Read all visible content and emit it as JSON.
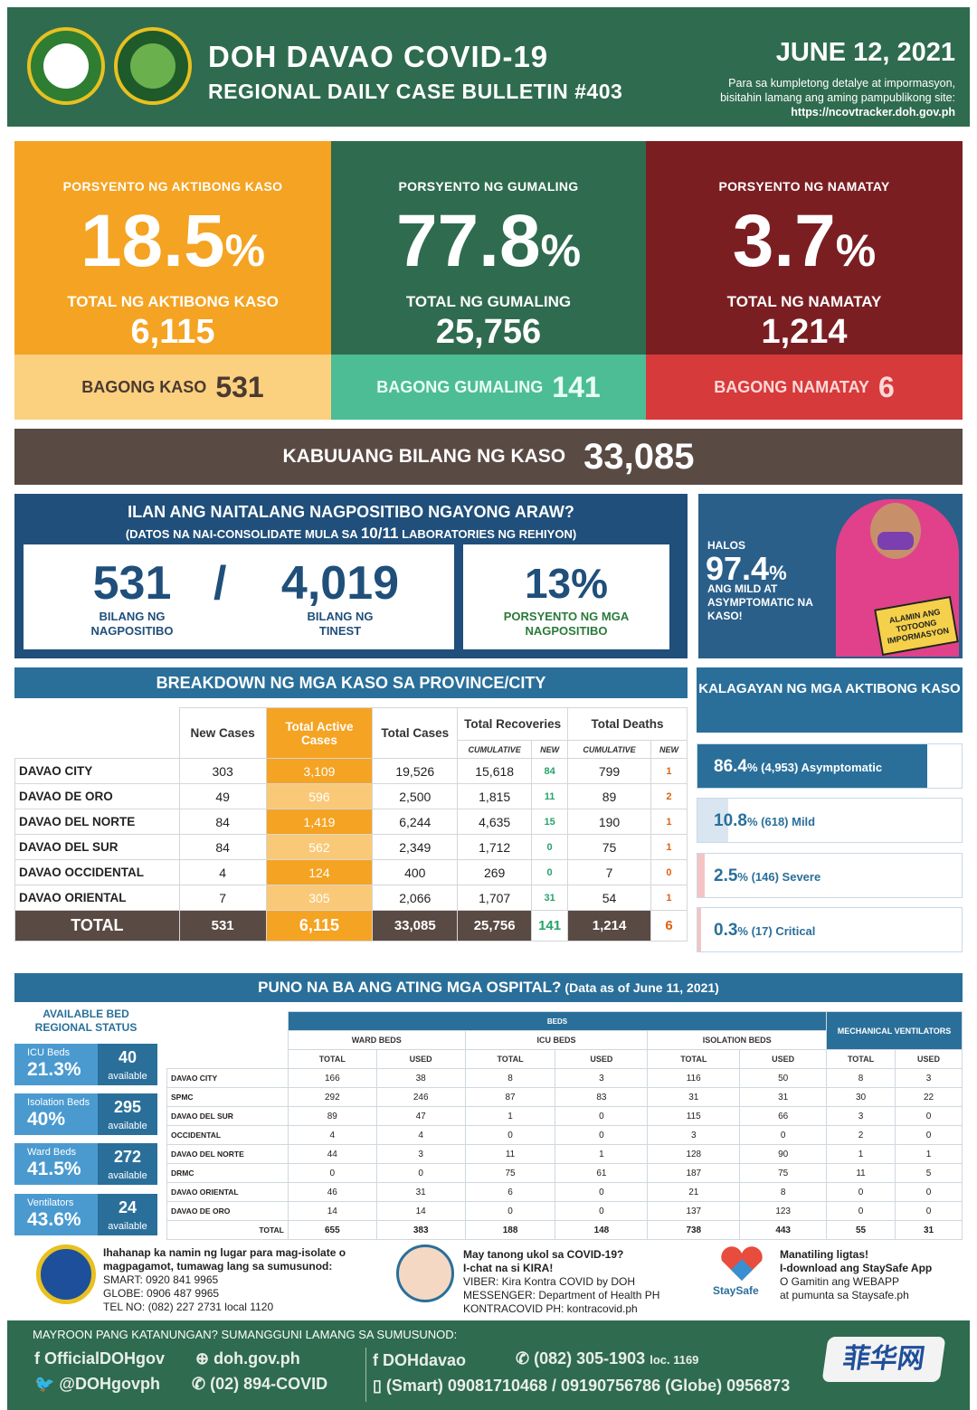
{
  "header": {
    "title": "DOH DAVAO COVID-19",
    "subtitle": "REGIONAL DAILY CASE BULLETIN #403",
    "date": "JUNE 12, 2021",
    "note1": "Para sa kumpletong detalye at impormasyon,",
    "note2": "bisitahin lamang ang aming pampublikong site:",
    "url": "https://ncovtracker.doh.gov.ph"
  },
  "stats": [
    {
      "label": "PORSYENTO NG AKTIBONG KASO",
      "pct": "18.5",
      "pct_sign": "%",
      "total_label": "TOTAL NG AKTIBONG KASO",
      "total": "6,115",
      "new_label": "BAGONG KASO",
      "new": "531",
      "color": "#f5a322",
      "new_color": "#fbd07f",
      "new_text": "#4a3a30"
    },
    {
      "label": "PORSYENTO NG GUMALING",
      "pct": "77.8",
      "pct_sign": "%",
      "total_label": "TOTAL NG GUMALING",
      "total": "25,756",
      "new_label": "BAGONG GUMALING",
      "new": "141",
      "color": "#2f6b4f",
      "new_color": "#4dbd95",
      "new_text": "#e9fff6"
    },
    {
      "label": "PORSYENTO NG NAMATAY",
      "pct": "3.7",
      "pct_sign": "%",
      "total_label": "TOTAL NG NAMATAY",
      "total": "1,214",
      "new_label": "BAGONG NAMATAY",
      "new": "6",
      "color": "#7b1e22",
      "new_color": "#d63a3a",
      "new_text": "#ffd8d8"
    }
  ],
  "total_cases": {
    "label": "KABUUANG BILANG NG KASO",
    "value": "33,085"
  },
  "positivity": {
    "title": "ILAN ANG NAITALANG NAGPOSITIBO NGAYONG ARAW?",
    "sub_pre": "(DATOS NA NAI-CONSOLIDATE MULA SA",
    "sub_num": "10/11",
    "sub_post": "LABORATORIES NG REHIYON)",
    "positive": "531",
    "positive_label1": "BILANG NG",
    "positive_label2": "NAGPOSITIBO",
    "slash": "/",
    "tested": "4,019",
    "tested_label1": "BILANG NG",
    "tested_label2": "TINEST",
    "rate": "13%",
    "rate_label1": "PORSYENTO NG MGA",
    "rate_label2": "NAGPOSITIBO"
  },
  "kira": {
    "halos": "HALOS",
    "pct": "97.4",
    "pct_sign": "%",
    "desc": "ANG MILD AT ASYMPTOMATIC NA KASO!",
    "tag": "ALAMIN ANG TOTOONG IMPORMASYON"
  },
  "breakdown": {
    "title": "BREAKDOWN NG MGA KASO SA PROVINCE/CITY",
    "headers": {
      "new": "New Cases",
      "active": "Total Active Cases",
      "total": "Total Cases",
      "recov": "Total Recoveries",
      "deaths": "Total Deaths",
      "cum": "CUMULATIVE",
      "new_sub": "NEW"
    },
    "rows": [
      {
        "name": "DAVAO CITY",
        "new": "303",
        "active": "3,109",
        "total": "19,526",
        "rec": "15,618",
        "rec_new": "84",
        "death": "799",
        "death_new": "1"
      },
      {
        "name": "DAVAO DE ORO",
        "new": "49",
        "active": "596",
        "total": "2,500",
        "rec": "1,815",
        "rec_new": "11",
        "death": "89",
        "death_new": "2"
      },
      {
        "name": "DAVAO DEL NORTE",
        "new": "84",
        "active": "1,419",
        "total": "6,244",
        "rec": "4,635",
        "rec_new": "15",
        "death": "190",
        "death_new": "1"
      },
      {
        "name": "DAVAO DEL SUR",
        "new": "84",
        "active": "562",
        "total": "2,349",
        "rec": "1,712",
        "rec_new": "0",
        "death": "75",
        "death_new": "1"
      },
      {
        "name": "DAVAO OCCIDENTAL",
        "new": "4",
        "active": "124",
        "total": "400",
        "rec": "269",
        "rec_new": "0",
        "death": "7",
        "death_new": "0"
      },
      {
        "name": "DAVAO ORIENTAL",
        "new": "7",
        "active": "305",
        "total": "2,066",
        "rec": "1,707",
        "rec_new": "31",
        "death": "54",
        "death_new": "1"
      }
    ],
    "total": {
      "name": "TOTAL",
      "new": "531",
      "active": "6,115",
      "total": "33,085",
      "rec": "25,756",
      "rec_new": "141",
      "death": "1,214",
      "death_new": "6"
    }
  },
  "kalagayan": {
    "title": "KALAGAYAN NG MGA AKTIBONG KASO",
    "items": [
      {
        "pct": "86.4",
        "fraction": 0.864,
        "rest": "% (4,953) Asymptomatic"
      },
      {
        "pct": "10.8",
        "fraction": 0.108,
        "rest": "% (618) Mild"
      },
      {
        "pct": "2.5",
        "fraction": 0.025,
        "rest": "% (146) Severe"
      },
      {
        "pct": "0.3",
        "fraction": 0.003,
        "rest": "% (17) Critical"
      }
    ]
  },
  "hospital": {
    "title": "PUNO NA BA ANG ATING MGA OSPITAL?",
    "sub": "(Data as of June 11, 2021)",
    "avail_title": "AVAILABLE BED REGIONAL STATUS",
    "avail": [
      {
        "name": "ICU Beds",
        "pct": "21.3%",
        "count": "40",
        "word": "available"
      },
      {
        "name": "Isolation Beds",
        "pct": "40%",
        "count": "295",
        "word": "available"
      },
      {
        "name": "Ward Beds",
        "pct": "41.5%",
        "count": "272",
        "word": "available"
      },
      {
        "name": "Ventilators",
        "pct": "43.6%",
        "count": "24",
        "word": "available"
      }
    ],
    "beds_label": "BEDS",
    "ward": "WARD BEDS",
    "icu": "ICU BEDS",
    "iso": "ISOLATION BEDS",
    "vent": "MECHANICAL VENTILATORS",
    "total": "TOTAL",
    "used": "USED",
    "rows": [
      {
        "name": "DAVAO CITY",
        "v": [
          "166",
          "38",
          "8",
          "3",
          "116",
          "50",
          "8",
          "3"
        ]
      },
      {
        "name": "SPMC",
        "v": [
          "292",
          "246",
          "87",
          "83",
          "31",
          "31",
          "30",
          "22"
        ]
      },
      {
        "name": "DAVAO DEL SUR",
        "v": [
          "89",
          "47",
          "1",
          "0",
          "115",
          "66",
          "3",
          "0"
        ]
      },
      {
        "name": "OCCIDENTAL",
        "v": [
          "4",
          "4",
          "0",
          "0",
          "3",
          "0",
          "2",
          "0"
        ]
      },
      {
        "name": "DAVAO DEL NORTE",
        "v": [
          "44",
          "3",
          "11",
          "1",
          "128",
          "90",
          "1",
          "1"
        ]
      },
      {
        "name": "DRMC",
        "v": [
          "0",
          "0",
          "75",
          "61",
          "187",
          "75",
          "11",
          "5"
        ]
      },
      {
        "name": "DAVAO ORIENTAL",
        "v": [
          "46",
          "31",
          "6",
          "0",
          "21",
          "8",
          "0",
          "0"
        ]
      },
      {
        "name": "DAVAO DE ORO",
        "v": [
          "14",
          "14",
          "0",
          "0",
          "137",
          "123",
          "0",
          "0"
        ]
      }
    ],
    "total_row": {
      "name": "TOTAL",
      "v": [
        "655",
        "383",
        "188",
        "148",
        "738",
        "443",
        "55",
        "31"
      ]
    }
  },
  "contacts": {
    "c1": [
      "Ihahanap ka namin ng lugar para mag-isolate o",
      "magpagamot, tumawag lang sa sumusunod:",
      "SMART: 0920 841 9965",
      "GLOBE: 0906 487 9965",
      "TEL NO: (082) 227 2731 local 1120"
    ],
    "c2": [
      "May tanong ukol sa COVID-19?",
      "I-chat na si KIRA!",
      "VIBER: Kira Kontra COVID by DOH",
      "MESSENGER: Department of Health PH",
      "KONTRACOVID PH: kontracovid.ph"
    ],
    "c3": [
      "Manatiling ligtas!",
      "I-download ang StaySafe App",
      "O Gamitin ang WEBAPP",
      "at pumunta sa Staysafe.ph"
    ],
    "staysafe": "StaySafe"
  },
  "footer": {
    "question": "MAYROON PANG KATANUNGAN? SUMANGGUNI LAMANG SA SUMUSUNOD:",
    "fb1": "f  OfficialDOHgov",
    "web": "⊕ doh.gov.ph",
    "tw": "🐦 @DOHgovph",
    "ph1": "✆ (02) 894-COVID",
    "fb2": "f  DOHdavao",
    "ph2": "✆ (082) 305-1903",
    "loc": "loc. 1169",
    "mobile": "▯ (Smart) 09081710468 / 09190756786  (Globe) 0956873"
  },
  "watermark": "菲华网"
}
